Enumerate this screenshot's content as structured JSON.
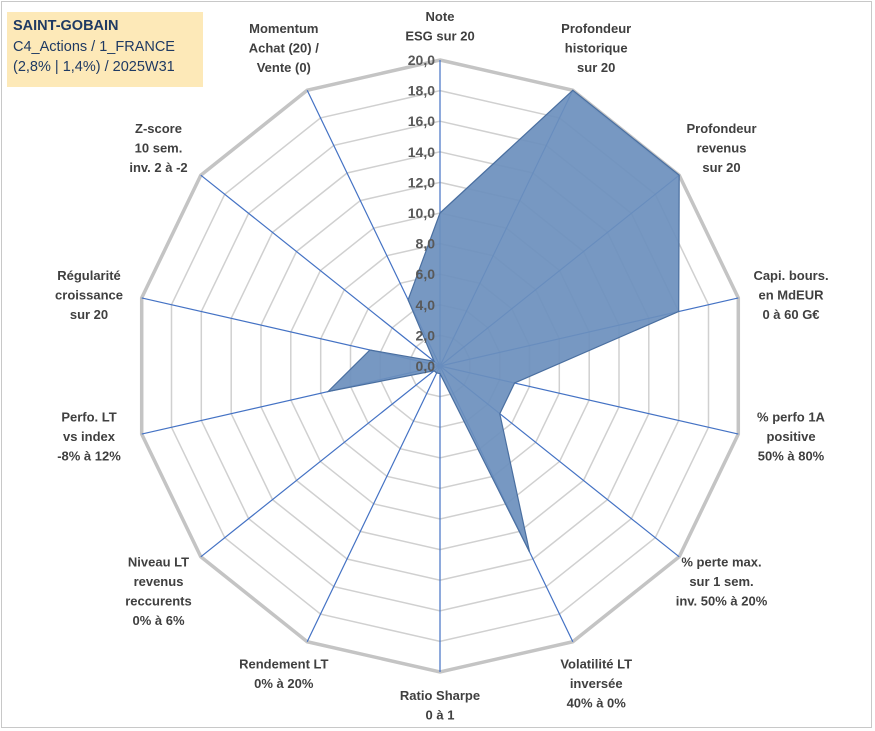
{
  "title_lines": [
    "SAINT-GOBAIN",
    "C4_Actions / 1_FRANCE",
    "(2,8% | 1,4%) / 2025W31"
  ],
  "chart_data": {
    "type": "radar",
    "rmin": 0,
    "rmax": 20,
    "tick_step": 2,
    "ticks": [
      "0,0",
      "2,0",
      "4,0",
      "6,0",
      "8,0",
      "10,0",
      "12,0",
      "14,0",
      "16,0",
      "18,0",
      "20,0"
    ],
    "axes": [
      [
        "Note",
        "ESG sur 20"
      ],
      [
        "Profondeur",
        "historique",
        "sur 20"
      ],
      [
        "Profondeur",
        "revenus",
        "sur 20"
      ],
      [
        "Capi. bours.",
        "en MdEUR",
        "0 à 60 G€"
      ],
      [
        "% perfo 1A",
        "positive",
        "50% à 80%"
      ],
      [
        "% perte max.",
        "sur 1 sem.",
        "inv. 50% à 20%"
      ],
      [
        "Volatilité LT",
        "inversée",
        "40% à 0%"
      ],
      [
        "Ratio Sharpe",
        "0 à 1"
      ],
      [
        "Rendement LT",
        "0% à 20%"
      ],
      [
        "Niveau LT",
        "revenus",
        "reccurents",
        "0% à 6%"
      ],
      [
        "Perfo. LT",
        "vs index",
        "-8% à 12%"
      ],
      [
        "Régularité",
        "croissance",
        "sur 20"
      ],
      [
        "Z-score",
        "10 sem.",
        "inv. 2 à -2"
      ],
      [
        "Momentum",
        "Achat (20) /",
        "Vente (0)"
      ]
    ],
    "values": [
      10.0,
      20.0,
      20.0,
      16.0,
      5.0,
      5.0,
      13.5,
      0.5,
      0.5,
      0.5,
      7.5,
      4.7,
      0.5,
      4.8
    ],
    "fill_color": "#6b8fbd",
    "stroke_color": "#4a6fa0",
    "grid_color": "#d0d0d0",
    "axis_color": "#4472c4"
  }
}
